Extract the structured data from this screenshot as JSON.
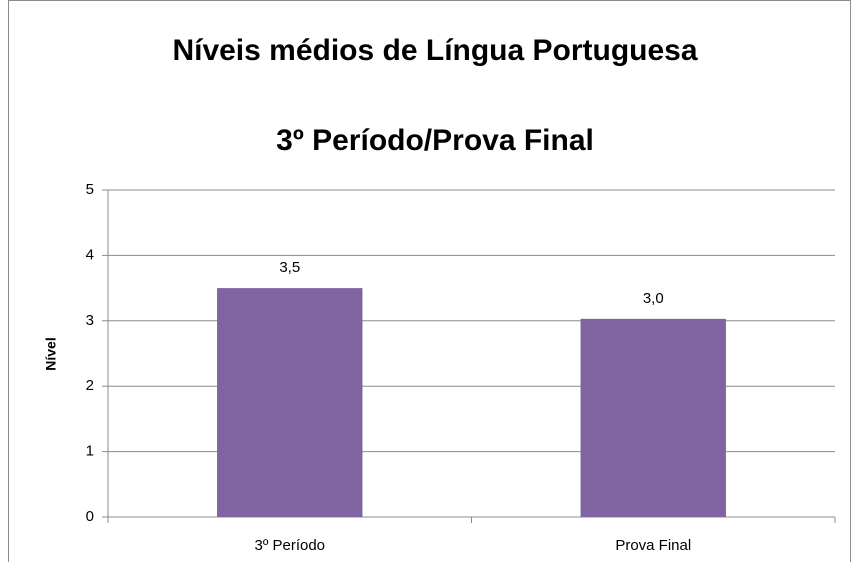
{
  "chart_data": {
    "type": "bar",
    "title": "Níveis médios de Língua Portuguesa",
    "subtitle": "3º Período/Prova Final",
    "y_label": "Nível",
    "categories": [
      "3º Período",
      "Prova Final"
    ],
    "values": [
      3.5,
      3.03
    ],
    "value_labels": [
      "3,5",
      "3,0"
    ],
    "color": "#8064a2",
    "ylim": [
      0,
      5
    ],
    "yticks": [
      0,
      1,
      2,
      3,
      4,
      5
    ],
    "grid": true
  }
}
